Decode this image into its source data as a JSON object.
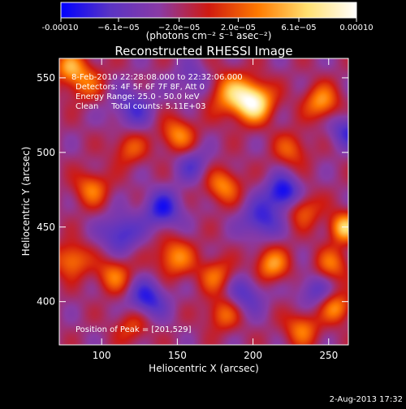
{
  "chart_data": {
    "type": "heatmap",
    "title": "Reconstructed RHESSI Image",
    "xlabel": "Heliocentric X (arcsec)",
    "ylabel": "Heliocentric Y (arcsec)",
    "xlim": [
      72,
      263
    ],
    "ylim": [
      371,
      563
    ],
    "x_ticks": [
      100,
      150,
      200,
      250
    ],
    "y_ticks": [
      400,
      450,
      500,
      550
    ],
    "x_tick_labels": [
      "100",
      "150",
      "200",
      "250"
    ],
    "y_tick_labels": [
      "400",
      "450",
      "500",
      "550"
    ],
    "colorbar": {
      "range": [
        -0.0001,
        0.0001
      ],
      "ticks": [
        -0.0001,
        -6.1e-05,
        -2e-05,
        2e-05,
        6.1e-05,
        0.0001
      ],
      "tick_labels": [
        "-0.00010",
        "−6.1e−05",
        "−2.0e−05",
        "2.0e−05",
        "6.1e−05",
        "0.00010"
      ],
      "units_label": "(photons cm⁻² s⁻¹ asec⁻²)",
      "colors": [
        "#0000ff",
        "#5a34c4",
        "#8a3aa5",
        "#d01a10",
        "#ff7a00",
        "#ffe070",
        "#ffffff"
      ]
    },
    "annotations": [
      "8-Feb-2010 22:28:08.000 to 22:32:06.000",
      "Detectors: 4F 5F 6F 7F 8F, Att 0",
      "Energy Range: 25.0 - 50.0 keV",
      "Clean     Total counts: 5.11E+03"
    ],
    "peak_label": "Position of Peak = [201,529]",
    "peak": [
      201,
      529
    ],
    "sources": [
      {
        "x": 200,
        "y": 534,
        "amp": 1.0,
        "sigma": 9
      },
      {
        "x": 184,
        "y": 540,
        "amp": 0.55,
        "sigma": 10
      },
      {
        "x": 245,
        "y": 534,
        "amp": 0.6,
        "sigma": 8
      },
      {
        "x": 88,
        "y": 548,
        "amp": 0.45,
        "sigma": 9
      },
      {
        "x": 78,
        "y": 558,
        "amp": 0.5,
        "sigma": 7
      },
      {
        "x": 150,
        "y": 512,
        "amp": 0.55,
        "sigma": 8
      },
      {
        "x": 118,
        "y": 503,
        "amp": 0.4,
        "sigma": 8
      },
      {
        "x": 93,
        "y": 476,
        "amp": 0.5,
        "sigma": 8
      },
      {
        "x": 180,
        "y": 478,
        "amp": 0.55,
        "sigma": 8
      },
      {
        "x": 260,
        "y": 450,
        "amp": 0.75,
        "sigma": 7
      },
      {
        "x": 233,
        "y": 462,
        "amp": 0.45,
        "sigma": 8
      },
      {
        "x": 225,
        "y": 502,
        "amp": 0.4,
        "sigma": 8
      },
      {
        "x": 80,
        "y": 428,
        "amp": 0.55,
        "sigma": 8
      },
      {
        "x": 108,
        "y": 418,
        "amp": 0.5,
        "sigma": 8
      },
      {
        "x": 148,
        "y": 430,
        "amp": 0.55,
        "sigma": 9
      },
      {
        "x": 175,
        "y": 418,
        "amp": 0.45,
        "sigma": 8
      },
      {
        "x": 212,
        "y": 425,
        "amp": 0.6,
        "sigma": 8
      },
      {
        "x": 252,
        "y": 425,
        "amp": 0.45,
        "sigma": 8
      },
      {
        "x": 180,
        "y": 392,
        "amp": 0.45,
        "sigma": 8
      },
      {
        "x": 232,
        "y": 382,
        "amp": 0.5,
        "sigma": 8
      },
      {
        "x": 255,
        "y": 396,
        "amp": 0.55,
        "sigma": 7
      },
      {
        "x": 120,
        "y": 384,
        "amp": 0.35,
        "sigma": 8
      },
      {
        "x": 140,
        "y": 462,
        "amp": -0.55,
        "sigma": 9
      },
      {
        "x": 220,
        "y": 473,
        "amp": -0.7,
        "sigma": 8
      },
      {
        "x": 205,
        "y": 455,
        "amp": -0.5,
        "sigma": 9
      },
      {
        "x": 112,
        "y": 446,
        "amp": -0.5,
        "sigma": 9
      },
      {
        "x": 130,
        "y": 402,
        "amp": -0.55,
        "sigma": 9
      },
      {
        "x": 262,
        "y": 515,
        "amp": -0.45,
        "sigma": 8
      },
      {
        "x": 120,
        "y": 530,
        "amp": -0.4,
        "sigma": 10
      },
      {
        "x": 160,
        "y": 548,
        "amp": -0.3,
        "sigma": 9
      },
      {
        "x": 195,
        "y": 405,
        "amp": -0.4,
        "sigma": 9
      },
      {
        "x": 240,
        "y": 408,
        "amp": -0.35,
        "sigma": 8
      },
      {
        "x": 160,
        "y": 492,
        "amp": -0.35,
        "sigma": 8
      }
    ]
  },
  "footer": {
    "timestamp": "2-Aug-2013 17:32"
  }
}
